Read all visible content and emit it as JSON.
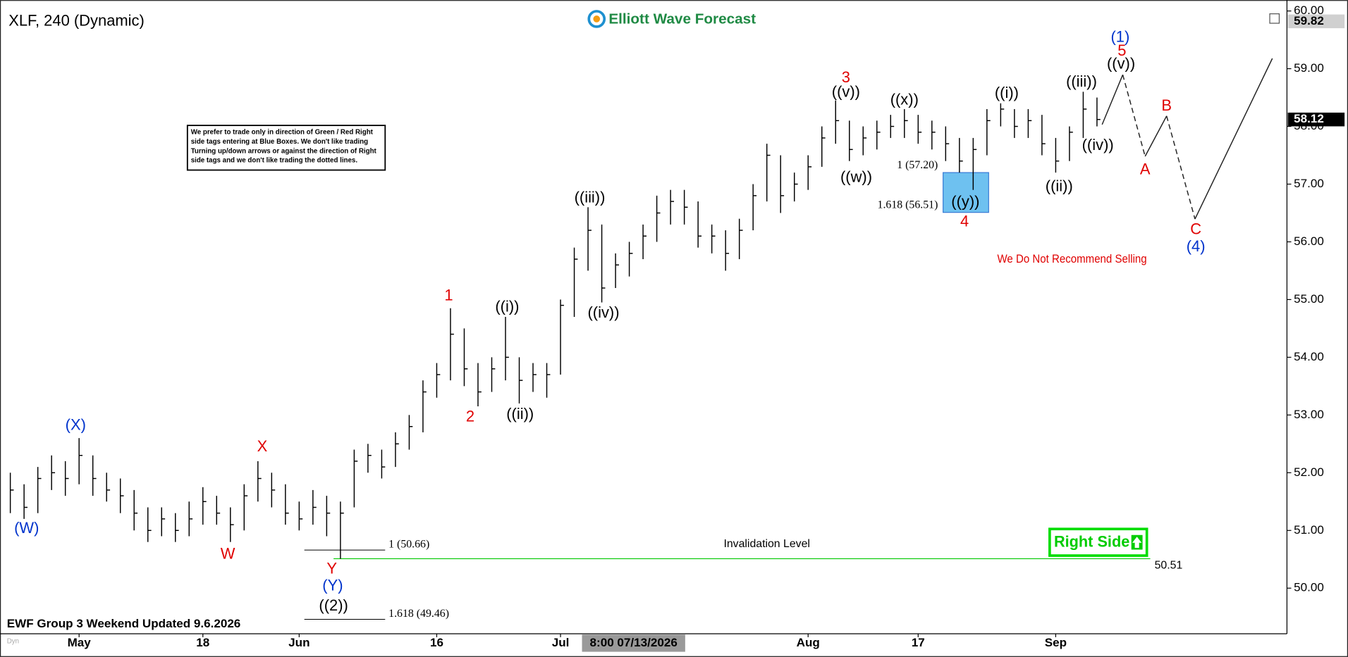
{
  "chart_data": {
    "type": "hlc",
    "title": "XLF, 240 (Dynamic)",
    "brand": "Elliott Wave Forecast",
    "footer": "EWF Group 3 Weekend Updated 9.6.2026",
    "footer_tag": "Dyn",
    "crosshair_label": "8:00 07/13/2026",
    "note_lines": [
      "We prefer to trade only in direction of Green / Red Right",
      "side tags entering at Blue Boxes. We don't like trading",
      "Turning up/down arrows or against the direction of Right",
      "side tags and we don't like trading the dotted lines."
    ],
    "warning": "We Do Not Recommend Selling",
    "right_side": "Right Side",
    "categories": [
      null,
      null,
      null,
      null,
      null,
      "May",
      null,
      null,
      null,
      null,
      null,
      null,
      null,
      null,
      "18",
      null,
      null,
      null,
      null,
      null,
      null,
      "Jun",
      null,
      null,
      null,
      null,
      null,
      null,
      null,
      null,
      null,
      "16",
      null,
      null,
      null,
      null,
      null,
      null,
      null,
      null,
      "Jul",
      null,
      null,
      null,
      null,
      null,
      null,
      null,
      null,
      null,
      null,
      null,
      null,
      null,
      null,
      null,
      null,
      null,
      "Aug",
      null,
      null,
      null,
      null,
      null,
      null,
      null,
      "17",
      null,
      null,
      null,
      null,
      null,
      null,
      null,
      null,
      null,
      "Sep",
      null,
      null,
      null
    ],
    "close": [
      51.7,
      51.4,
      51.9,
      52.0,
      51.9,
      52.3,
      51.9,
      51.7,
      51.6,
      51.3,
      51.0,
      51.2,
      51.0,
      51.2,
      51.5,
      51.3,
      51.1,
      51.6,
      51.9,
      51.7,
      51.3,
      51.2,
      51.4,
      51.3,
      51.3,
      52.2,
      52.3,
      52.1,
      52.5,
      52.8,
      53.4,
      53.7,
      54.4,
      53.8,
      53.4,
      53.8,
      54.0,
      53.6,
      53.7,
      53.7,
      54.9,
      55.7,
      56.2,
      55.2,
      55.6,
      55.8,
      56.1,
      56.5,
      56.7,
      56.6,
      56.1,
      56.1,
      55.8,
      56.2,
      56.8,
      57.5,
      56.8,
      57.0,
      57.3,
      57.8,
      58.1,
      57.6,
      57.8,
      57.9,
      58.0,
      58.1,
      57.9,
      57.9,
      57.7,
      57.4,
      57.6,
      58.1,
      58.3,
      58.0,
      58.1,
      57.7,
      57.4,
      57.9,
      58.3,
      58.12
    ],
    "high": [
      52.0,
      51.8,
      52.1,
      52.3,
      52.2,
      52.6,
      52.3,
      52.0,
      51.9,
      51.7,
      51.4,
      51.4,
      51.3,
      51.5,
      51.75,
      51.6,
      51.4,
      51.8,
      52.2,
      52.0,
      51.8,
      51.5,
      51.7,
      51.6,
      51.5,
      52.4,
      52.5,
      52.4,
      52.7,
      53.0,
      53.6,
      53.9,
      54.85,
      54.5,
      53.9,
      54.0,
      54.7,
      54.0,
      53.9,
      53.9,
      55.0,
      55.9,
      56.6,
      56.3,
      55.8,
      56.0,
      56.3,
      56.8,
      56.9,
      56.9,
      56.7,
      56.3,
      56.2,
      56.4,
      57.0,
      57.7,
      57.5,
      57.2,
      57.5,
      58.0,
      58.45,
      58.1,
      58.0,
      58.1,
      58.2,
      58.3,
      58.2,
      58.1,
      58.0,
      57.8,
      57.8,
      58.3,
      58.4,
      58.3,
      58.3,
      58.2,
      57.8,
      58.0,
      58.6,
      58.5
    ],
    "low": [
      51.3,
      51.2,
      51.3,
      51.7,
      51.6,
      51.8,
      51.6,
      51.5,
      51.3,
      51.0,
      50.8,
      50.9,
      50.8,
      50.9,
      51.1,
      51.1,
      50.8,
      51.0,
      51.5,
      51.4,
      51.1,
      51.0,
      51.1,
      50.9,
      50.51,
      51.4,
      52.0,
      51.9,
      52.1,
      52.4,
      52.7,
      53.3,
      53.6,
      53.5,
      53.15,
      53.4,
      53.6,
      53.2,
      53.4,
      53.3,
      53.7,
      54.7,
      55.5,
      54.95,
      55.2,
      55.4,
      55.7,
      56.0,
      56.3,
      56.3,
      55.9,
      55.8,
      55.5,
      55.7,
      56.2,
      56.7,
      56.5,
      56.7,
      56.9,
      57.3,
      57.7,
      57.4,
      57.5,
      57.6,
      57.8,
      57.8,
      57.7,
      57.6,
      57.4,
      57.2,
      56.9,
      57.5,
      58.0,
      57.8,
      57.8,
      57.5,
      57.2,
      57.4,
      57.8,
      58.0
    ],
    "color": "#000000",
    "ylim": [
      49.21,
      60.07
    ],
    "yticks": [
      {
        "value": 50,
        "label": "50.00"
      },
      {
        "value": 51,
        "label": "51.00"
      },
      {
        "value": 52,
        "label": "52.00"
      },
      {
        "value": 53,
        "label": "53.00"
      },
      {
        "value": 54,
        "label": "54.00"
      },
      {
        "value": 55,
        "label": "55.00"
      },
      {
        "value": 56,
        "label": "56.00"
      },
      {
        "value": 57,
        "label": "57.00"
      },
      {
        "value": 58,
        "label": "58.00"
      },
      {
        "value": 59,
        "label": "59.00"
      },
      {
        "value": 60,
        "label": "60.00"
      }
    ],
    "price_labels": [
      59.82,
      58.12
    ],
    "levels": [
      {
        "label": "1 (57.20)",
        "value": 57.2
      },
      {
        "label": "1.618 (56.51)",
        "value": 56.51
      },
      {
        "label": "1 (50.66)",
        "value": 50.66
      },
      {
        "label": "1.618 (49.46)",
        "value": 49.46
      }
    ],
    "invalidation": {
      "label": "Invalidation Level",
      "value": 50.51,
      "color": "#00c800"
    },
    "box_color": "#6ec1f0",
    "annotations": [
      {
        "text": "(1)",
        "color": "#0033cc"
      },
      {
        "text": "5",
        "color": "#e00000"
      },
      {
        "text": "((v))",
        "color": "#000000"
      },
      {
        "text": "3",
        "color": "#e00000"
      },
      {
        "text": "((v))",
        "color": "#000000"
      },
      {
        "text": "((x))",
        "color": "#000000"
      },
      {
        "text": "((i))",
        "color": "#000000"
      },
      {
        "text": "((iii))",
        "color": "#000000"
      },
      {
        "text": "((iv))",
        "color": "#000000"
      },
      {
        "text": "((w))",
        "color": "#000000"
      },
      {
        "text": "((ii))",
        "color": "#000000"
      },
      {
        "text": "((y))",
        "color": "#000000"
      },
      {
        "text": "4",
        "color": "#e00000"
      },
      {
        "text": "A",
        "color": "#e00000"
      },
      {
        "text": "B",
        "color": "#e00000"
      },
      {
        "text": "C",
        "color": "#e00000"
      },
      {
        "text": "(4)",
        "color": "#0033cc"
      },
      {
        "text": "((iii))",
        "color": "#000000"
      },
      {
        "text": "((iv))",
        "color": "#000000"
      },
      {
        "text": "1",
        "color": "#e00000"
      },
      {
        "text": "((i))",
        "color": "#000000"
      },
      {
        "text": "2",
        "color": "#e00000"
      },
      {
        "text": "((ii))",
        "color": "#000000"
      },
      {
        "text": "(X)",
        "color": "#0033cc"
      },
      {
        "text": "X",
        "color": "#e00000"
      },
      {
        "text": "(W)",
        "color": "#0033cc"
      },
      {
        "text": "W",
        "color": "#e00000"
      },
      {
        "text": "Y",
        "color": "#e00000"
      },
      {
        "text": "(Y)",
        "color": "#0033cc"
      },
      {
        "text": "((2))",
        "color": "#000000"
      }
    ]
  }
}
